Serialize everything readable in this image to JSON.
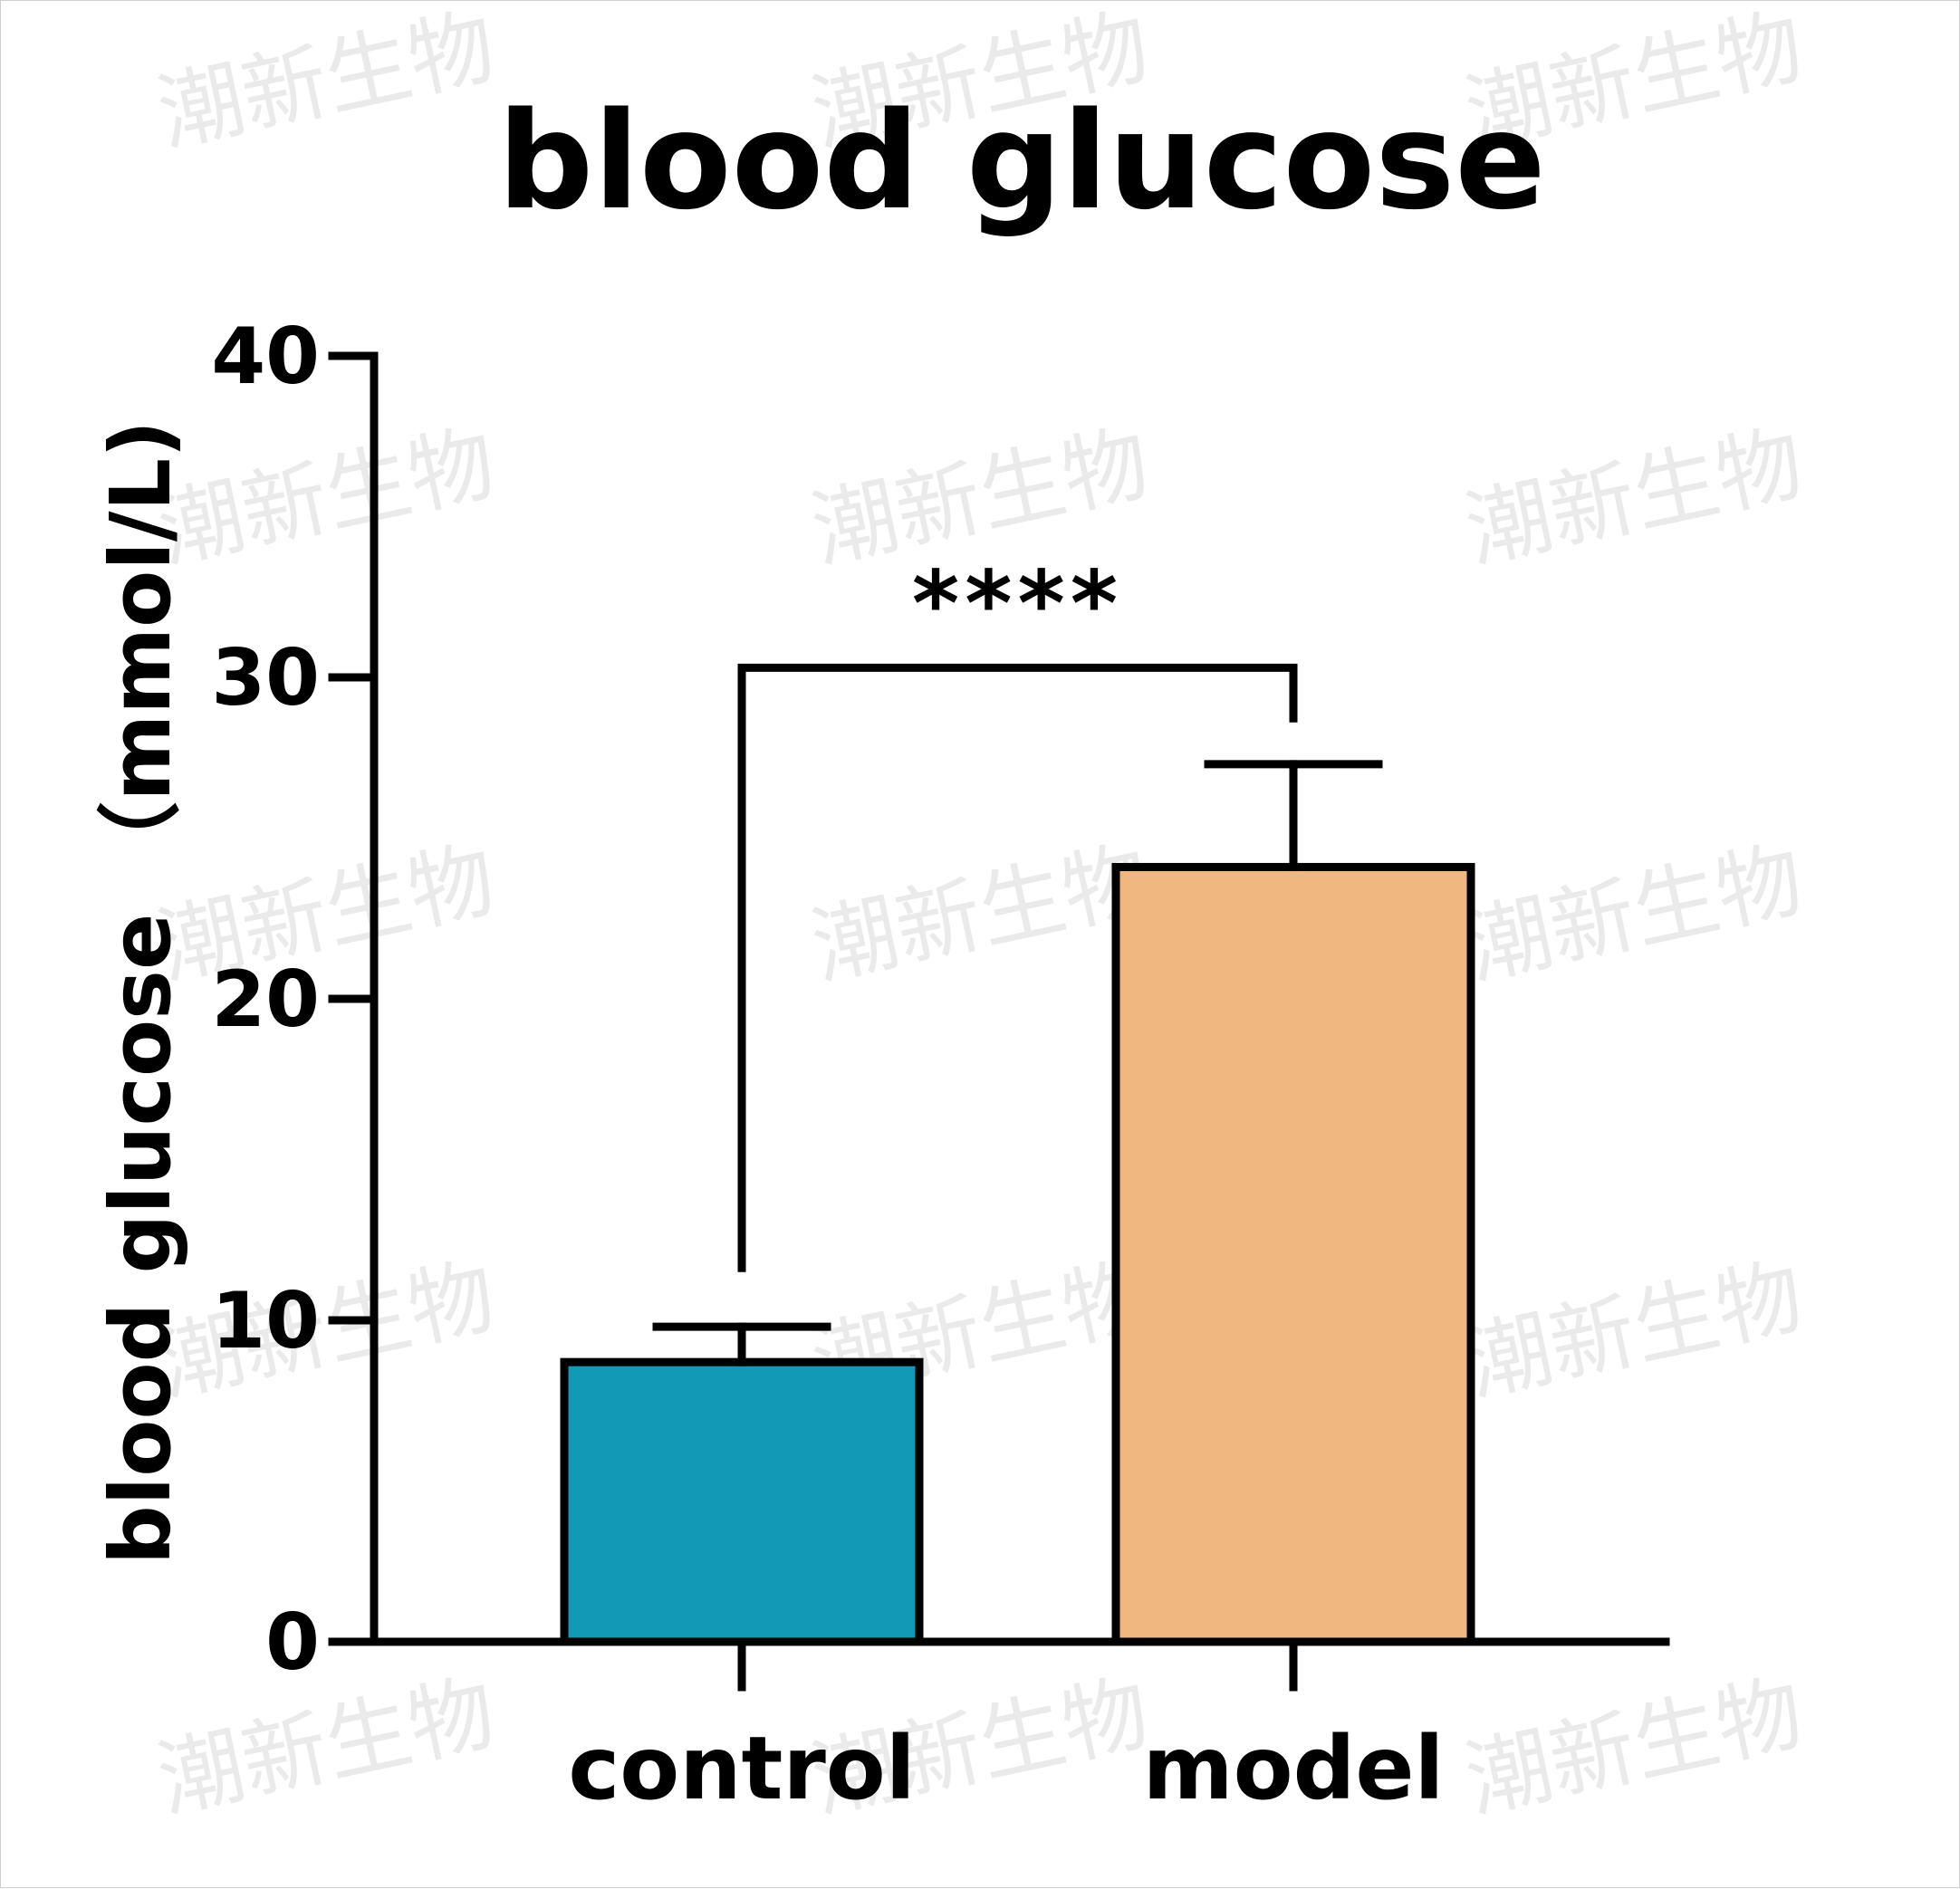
{
  "watermark": "潮新生物",
  "chart_data": {
    "type": "bar",
    "title": "blood glucose",
    "xlabel": "",
    "ylabel": "blood glucose （mmol/L)",
    "categories": [
      "control",
      "model"
    ],
    "values": [
      8.7,
      24.1
    ],
    "error_upper": [
      9.8,
      27.3
    ],
    "ylim": [
      0,
      40
    ],
    "yticks": [
      0,
      10,
      20,
      30,
      40
    ],
    "colors": [
      "#1199b6",
      "#f0b780"
    ],
    "significance": {
      "label": "****",
      "between": [
        "control",
        "model"
      ]
    },
    "grid": false,
    "legend": "none"
  }
}
